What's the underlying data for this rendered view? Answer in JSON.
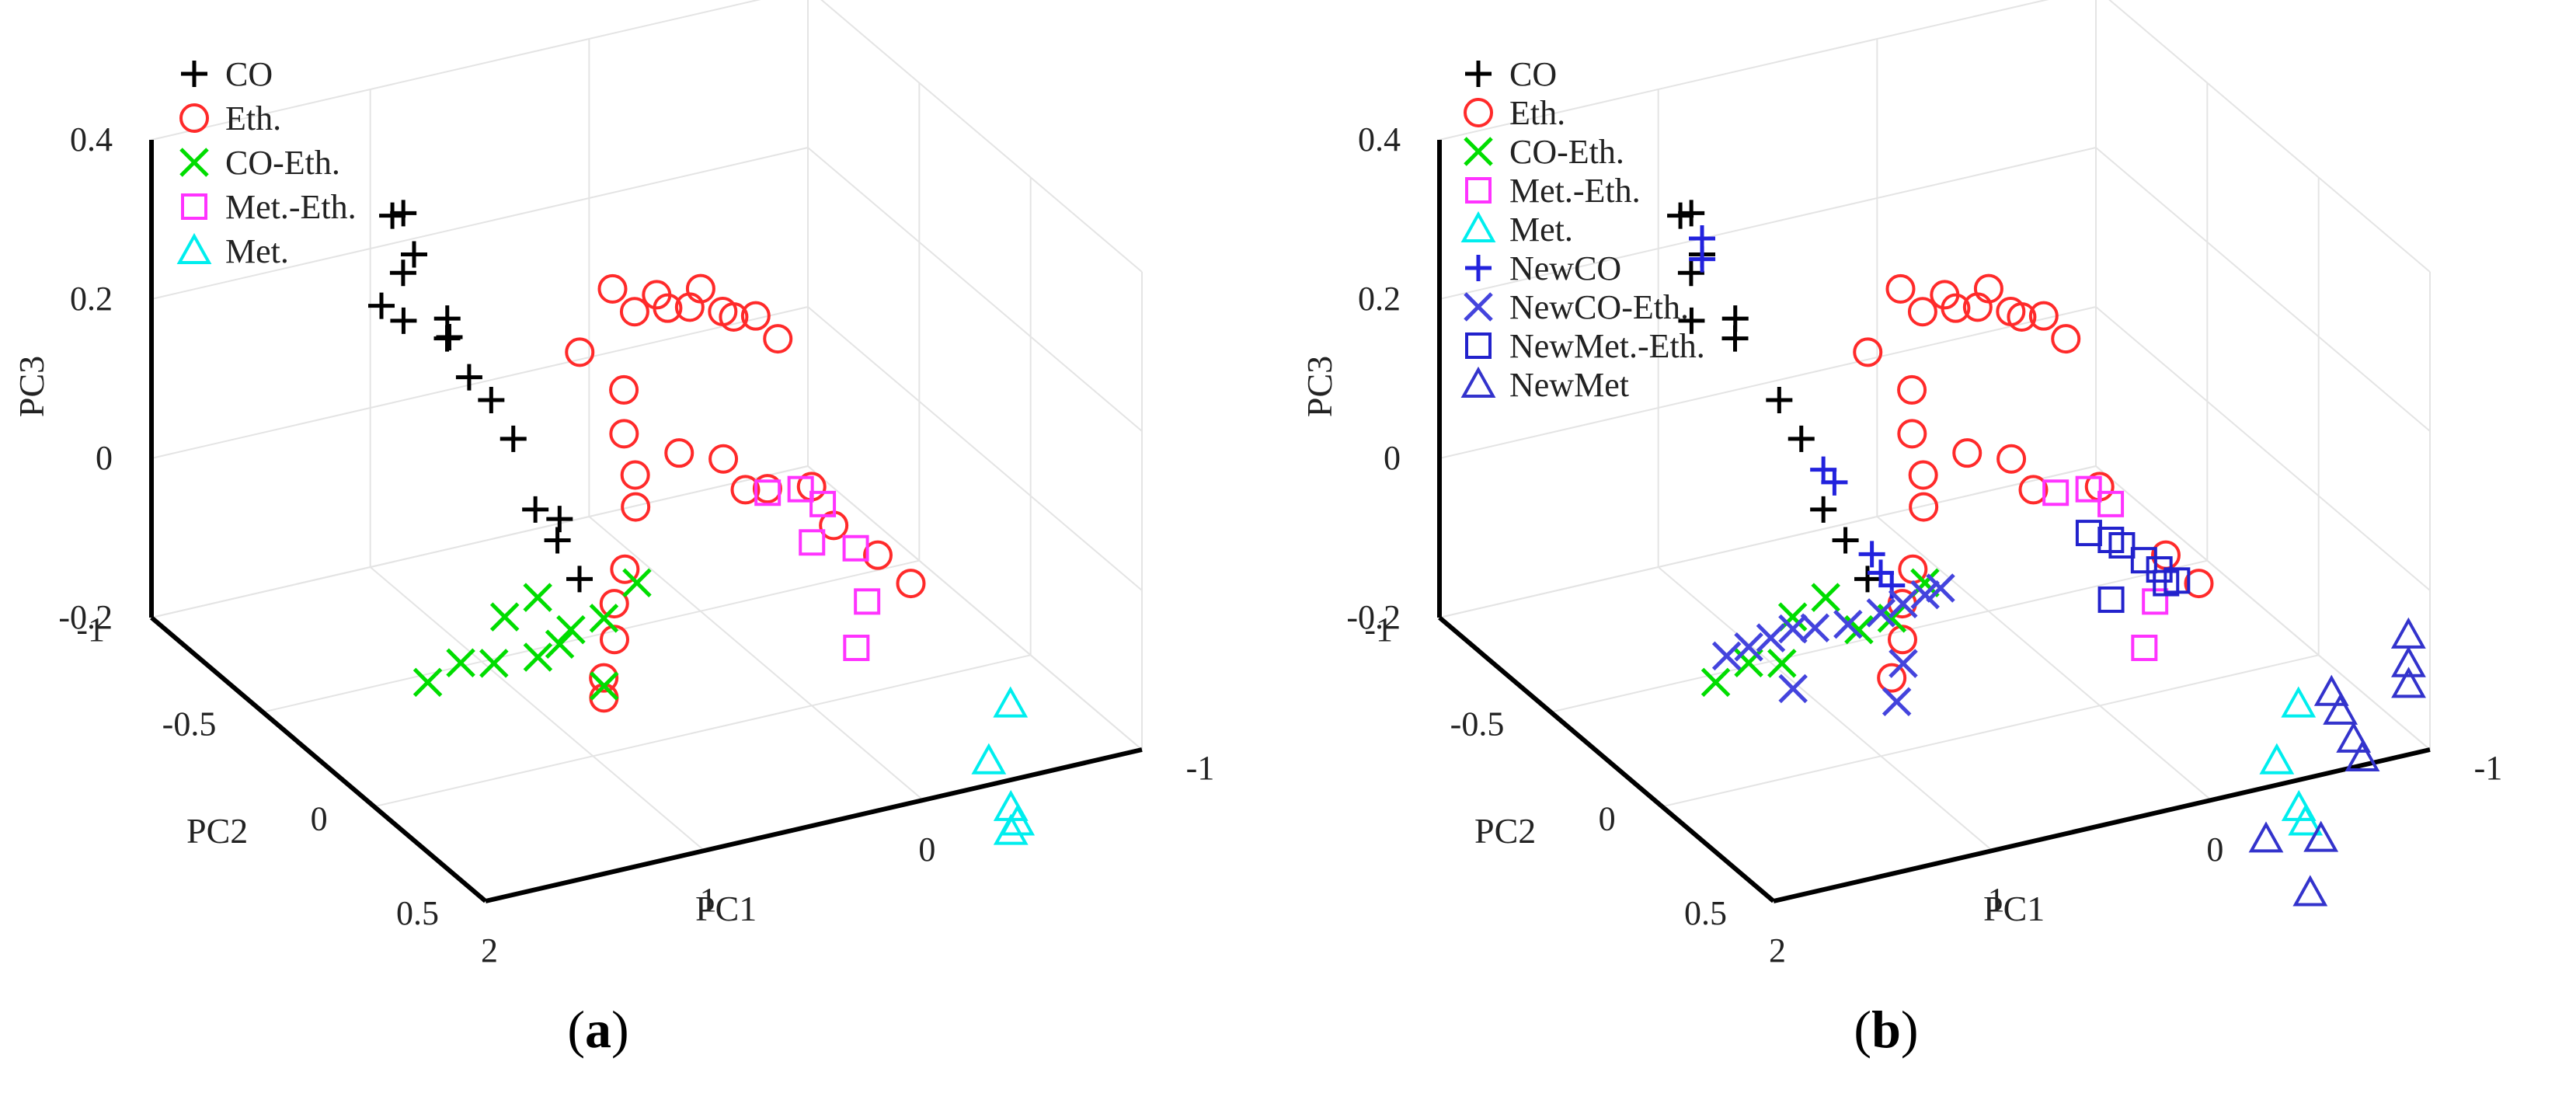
{
  "chart_data": [
    {
      "type": "scatter",
      "projection": "3d",
      "caption": "(a)",
      "xlabel": "PC1",
      "ylabel": "PC2",
      "zlabel": "PC3",
      "xlim": [
        -1,
        2
      ],
      "ylim": [
        -1,
        0.5
      ],
      "zlim": [
        -0.2,
        0.4
      ],
      "xticks": [
        "-1",
        "0",
        "1",
        "2"
      ],
      "yticks": [
        "-1",
        "-0.5",
        "0",
        "0.5"
      ],
      "zticks": [
        "-0.2",
        "0",
        "0.2",
        "0.4"
      ],
      "grid": true,
      "legend_position": "top-left",
      "series": [
        {
          "name": "CO",
          "marker": "plus",
          "color": "#000000",
          "points": [
            [
              0.9,
              -0.95,
              0.25
            ],
            [
              0.95,
              -0.95,
              0.25
            ],
            [
              0.8,
              -1.0,
              0.18
            ],
            [
              0.85,
              -1.0,
              0.16
            ],
            [
              1.0,
              -0.95,
              0.14
            ],
            [
              0.95,
              -0.9,
              0.13
            ],
            [
              0.75,
              -0.9,
              0.12
            ],
            [
              0.7,
              -0.95,
              0.08
            ],
            [
              0.72,
              -0.92,
              0.09
            ],
            [
              0.6,
              -0.85,
              0.02
            ],
            [
              0.65,
              -0.9,
              0.04
            ],
            [
              0.55,
              -0.8,
              -0.02
            ],
            [
              0.5,
              -0.75,
              -0.1
            ],
            [
              0.45,
              -0.7,
              -0.13
            ],
            [
              0.42,
              -0.72,
              -0.11
            ],
            [
              0.4,
              -0.65,
              -0.17
            ]
          ]
        },
        {
          "name": "Eth.",
          "marker": "circle",
          "color": "#ff2a2a",
          "points": [
            [
              0.3,
              -0.6,
              0.2
            ],
            [
              0.25,
              -0.55,
              0.18
            ],
            [
              0.2,
              -0.5,
              0.21
            ],
            [
              0.15,
              -0.5,
              0.19
            ],
            [
              0.1,
              -0.45,
              0.2
            ],
            [
              0.05,
              -0.45,
              0.22
            ],
            [
              0.0,
              -0.4,
              0.2
            ],
            [
              -0.05,
              -0.4,
              0.19
            ],
            [
              -0.1,
              -0.35,
              0.2
            ],
            [
              -0.15,
              -0.3,
              0.18
            ],
            [
              0.45,
              -0.6,
              0.13
            ],
            [
              0.35,
              -0.5,
              0.1
            ],
            [
              0.4,
              -0.45,
              0.06
            ],
            [
              0.4,
              -0.4,
              0.02
            ],
            [
              0.5,
              -0.3,
              0.01
            ],
            [
              0.6,
              -0.25,
              -0.05
            ],
            [
              0.75,
              -0.15,
              -0.06
            ],
            [
              0.8,
              -0.1,
              -0.09
            ],
            [
              0.9,
              -0.05,
              -0.12
            ],
            [
              0.95,
              0.0,
              -0.13
            ],
            [
              0.25,
              -0.35,
              0.05
            ],
            [
              0.15,
              -0.25,
              0.06
            ],
            [
              0.1,
              -0.2,
              0.03
            ],
            [
              0.05,
              -0.15,
              0.04
            ],
            [
              -0.05,
              -0.05,
              0.06
            ],
            [
              -0.1,
              0.0,
              0.02
            ],
            [
              -0.2,
              0.1,
              0.0
            ],
            [
              -0.3,
              0.15,
              -0.03
            ]
          ]
        },
        {
          "name": "CO-Eth.",
          "marker": "x",
          "color": "#00dd00",
          "points": [
            [
              1.35,
              -0.25,
              -0.12
            ],
            [
              1.2,
              -0.2,
              -0.06
            ],
            [
              1.1,
              -0.15,
              -0.03
            ],
            [
              1.05,
              -0.05,
              -0.05
            ],
            [
              0.95,
              0.0,
              -0.03
            ],
            [
              0.85,
              0.05,
              0.02
            ],
            [
              1.05,
              -0.1,
              -0.08
            ],
            [
              1.45,
              -0.3,
              -0.15
            ],
            [
              1.3,
              -0.15,
              -0.1
            ],
            [
              1.15,
              -0.1,
              -0.09
            ],
            [
              1.0,
              0.05,
              -0.1
            ]
          ]
        },
        {
          "name": "Met.-Eth.",
          "marker": "square",
          "color": "#ff33ff",
          "points": [
            [
              0.1,
              -0.1,
              0.05
            ],
            [
              0.0,
              -0.05,
              0.06
            ],
            [
              -0.05,
              0.0,
              0.05
            ],
            [
              0.05,
              0.05,
              0.02
            ],
            [
              -0.15,
              0.05,
              0.0
            ],
            [
              -0.1,
              0.15,
              -0.04
            ],
            [
              0.0,
              0.2,
              -0.08
            ]
          ]
        },
        {
          "name": "Met.",
          "marker": "triangle",
          "color": "#00eeee",
          "points": [
            [
              -0.45,
              0.45,
              -0.12
            ],
            [
              -0.3,
              0.5,
              -0.17
            ],
            [
              -0.35,
              0.55,
              -0.22
            ],
            [
              -0.38,
              0.55,
              -0.24
            ],
            [
              -0.35,
              0.55,
              -0.25
            ]
          ]
        }
      ]
    },
    {
      "type": "scatter",
      "projection": "3d",
      "caption": "(b)",
      "xlabel": "PC1",
      "ylabel": "PC2",
      "zlabel": "PC3",
      "xlim": [
        -1,
        2
      ],
      "ylim": [
        -1,
        0.5
      ],
      "zlim": [
        -0.2,
        0.4
      ],
      "xticks": [
        "-1",
        "0",
        "1",
        "2"
      ],
      "yticks": [
        "-1",
        "-0.5",
        "0",
        "0.5"
      ],
      "zticks": [
        "-0.2",
        "0",
        "0.2",
        "0.4"
      ],
      "grid": true,
      "legend_position": "top-left",
      "series": [
        {
          "name": "CO",
          "marker": "plus",
          "color": "#000000",
          "points": [
            [
              0.9,
              -0.95,
              0.25
            ],
            [
              0.95,
              -0.95,
              0.25
            ],
            [
              0.8,
              -1.0,
              0.18
            ],
            [
              0.85,
              -1.0,
              0.16
            ],
            [
              0.95,
              -0.9,
              0.13
            ],
            [
              0.75,
              -0.9,
              0.12
            ],
            [
              0.7,
              -0.95,
              0.08
            ],
            [
              0.6,
              -0.85,
              0.02
            ],
            [
              0.55,
              -0.8,
              -0.02
            ],
            [
              0.5,
              -0.75,
              -0.1
            ],
            [
              0.45,
              -0.7,
              -0.13
            ],
            [
              0.4,
              -0.65,
              -0.17
            ]
          ]
        },
        {
          "name": "Eth.",
          "marker": "circle",
          "color": "#ff2a2a",
          "points": [
            [
              0.3,
              -0.6,
              0.2
            ],
            [
              0.25,
              -0.55,
              0.18
            ],
            [
              0.2,
              -0.5,
              0.21
            ],
            [
              0.15,
              -0.5,
              0.19
            ],
            [
              0.1,
              -0.45,
              0.2
            ],
            [
              0.05,
              -0.45,
              0.22
            ],
            [
              0.0,
              -0.4,
              0.2
            ],
            [
              -0.05,
              -0.4,
              0.19
            ],
            [
              -0.1,
              -0.35,
              0.2
            ],
            [
              -0.15,
              -0.3,
              0.18
            ],
            [
              0.45,
              -0.6,
              0.13
            ],
            [
              0.35,
              -0.5,
              0.1
            ],
            [
              0.4,
              -0.45,
              0.06
            ],
            [
              0.4,
              -0.4,
              0.02
            ],
            [
              0.5,
              -0.3,
              0.01
            ],
            [
              0.6,
              -0.25,
              -0.05
            ],
            [
              0.75,
              -0.15,
              -0.06
            ],
            [
              0.8,
              -0.1,
              -0.09
            ],
            [
              0.9,
              -0.05,
              -0.12
            ],
            [
              0.25,
              -0.35,
              0.05
            ],
            [
              0.15,
              -0.25,
              0.06
            ],
            [
              0.1,
              -0.2,
              0.03
            ],
            [
              -0.05,
              -0.05,
              0.06
            ],
            [
              -0.2,
              0.1,
              0.0
            ],
            [
              -0.3,
              0.15,
              -0.03
            ]
          ]
        },
        {
          "name": "CO-Eth.",
          "marker": "x",
          "color": "#00dd00",
          "points": [
            [
              1.35,
              -0.25,
              -0.12
            ],
            [
              1.2,
              -0.2,
              -0.06
            ],
            [
              1.1,
              -0.15,
              -0.03
            ],
            [
              1.05,
              -0.05,
              -0.05
            ],
            [
              0.95,
              0.0,
              -0.03
            ],
            [
              0.85,
              0.05,
              0.02
            ],
            [
              1.45,
              -0.3,
              -0.15
            ],
            [
              1.3,
              -0.15,
              -0.1
            ]
          ]
        },
        {
          "name": "Met.-Eth.",
          "marker": "square",
          "color": "#ff33ff",
          "points": [
            [
              0.1,
              -0.1,
              0.05
            ],
            [
              0.0,
              -0.05,
              0.06
            ],
            [
              -0.05,
              0.0,
              0.05
            ],
            [
              -0.1,
              0.15,
              -0.04
            ],
            [
              0.0,
              0.2,
              -0.08
            ]
          ]
        },
        {
          "name": "Met.",
          "marker": "triangle",
          "color": "#00eeee",
          "points": [
            [
              -0.45,
              0.45,
              -0.12
            ],
            [
              -0.3,
              0.5,
              -0.17
            ],
            [
              -0.35,
              0.55,
              -0.22
            ],
            [
              -0.38,
              0.55,
              -0.24
            ]
          ]
        },
        {
          "name": "NewCO",
          "marker": "plus",
          "color": "#2222dd",
          "points": [
            [
              0.8,
              -1.0,
              0.2
            ],
            [
              0.82,
              -0.98,
              0.18
            ],
            [
              0.5,
              -0.75,
              -0.05
            ],
            [
              0.48,
              -0.72,
              -0.06
            ],
            [
              0.38,
              -0.65,
              -0.14
            ],
            [
              0.36,
              -0.63,
              -0.16
            ],
            [
              0.34,
              -0.6,
              -0.17
            ]
          ]
        },
        {
          "name": "NewCO-Eth.",
          "marker": "x",
          "color": "#4444dd",
          "points": [
            [
              1.4,
              -0.3,
              -0.12
            ],
            [
              1.35,
              -0.25,
              -0.1
            ],
            [
              1.3,
              -0.2,
              -0.08
            ],
            [
              1.25,
              -0.15,
              -0.06
            ],
            [
              1.2,
              -0.1,
              -0.05
            ],
            [
              1.1,
              -0.05,
              -0.04
            ],
            [
              1.0,
              0.0,
              -0.02
            ],
            [
              0.95,
              0.05,
              0.0
            ],
            [
              0.9,
              0.1,
              0.02
            ],
            [
              0.85,
              0.12,
              0.03
            ],
            [
              1.0,
              0.1,
              -0.06
            ],
            [
              1.05,
              0.12,
              -0.1
            ],
            [
              1.3,
              -0.1,
              -0.12
            ]
          ]
        },
        {
          "name": "NewMet.-Eth.",
          "marker": "square",
          "color": "#2222cc",
          "points": [
            [
              0.05,
              0.0,
              0.02
            ],
            [
              0.0,
              0.05,
              0.02
            ],
            [
              -0.05,
              0.05,
              0.01
            ],
            [
              -0.1,
              0.1,
              0.0
            ],
            [
              -0.15,
              0.12,
              -0.01
            ],
            [
              -0.15,
              0.15,
              -0.02
            ],
            [
              -0.2,
              0.15,
              -0.02
            ],
            [
              0.05,
              0.1,
              -0.04
            ]
          ]
        },
        {
          "name": "NewMet",
          "marker": "triangle",
          "color": "#3333cc",
          "points": [
            [
              -0.8,
              0.6,
              -0.02
            ],
            [
              -0.78,
              0.62,
              -0.05
            ],
            [
              -0.76,
              0.64,
              -0.07
            ],
            [
              -0.55,
              0.5,
              -0.1
            ],
            [
              -0.57,
              0.52,
              -0.12
            ],
            [
              -0.6,
              0.55,
              -0.15
            ],
            [
              -0.62,
              0.57,
              -0.17
            ],
            [
              -0.2,
              0.55,
              -0.25
            ],
            [
              -0.4,
              0.6,
              -0.25
            ],
            [
              -0.3,
              0.65,
              -0.3
            ]
          ]
        }
      ]
    }
  ]
}
